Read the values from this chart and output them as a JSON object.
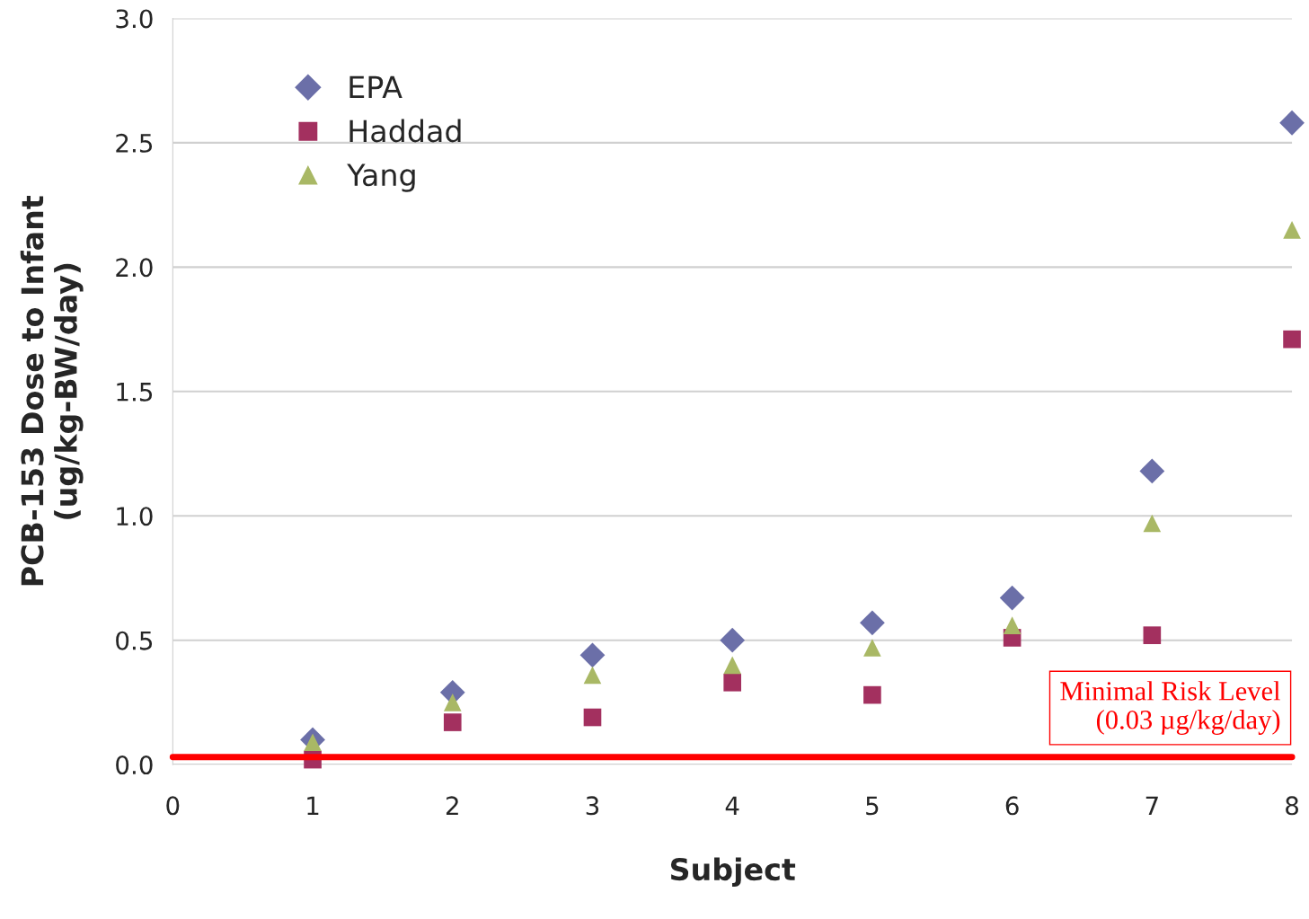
{
  "chart_data": {
    "type": "scatter",
    "xlabel": "Subject",
    "ylabel": "PCB-153 Dose to Infant\n(ug/kg-BW/day)",
    "x": [
      1,
      2,
      3,
      4,
      5,
      6,
      7,
      8
    ],
    "series": [
      {
        "name": "EPA",
        "color": "#6b6fa8",
        "marker": "diamond",
        "values": [
          0.1,
          0.29,
          0.44,
          0.5,
          0.57,
          0.67,
          1.18,
          2.58
        ]
      },
      {
        "name": "Haddad",
        "color": "#a3305f",
        "marker": "square",
        "values": [
          0.02,
          0.17,
          0.19,
          0.33,
          0.28,
          0.51,
          0.52,
          1.71
        ]
      },
      {
        "name": "Yang",
        "color": "#a9b865",
        "marker": "triangle",
        "values": [
          0.09,
          0.25,
          0.36,
          0.4,
          0.47,
          0.56,
          0.97,
          2.15
        ]
      }
    ],
    "xlim": [
      0,
      8
    ],
    "xticks": [
      0,
      1,
      2,
      3,
      4,
      5,
      6,
      7,
      8
    ],
    "ylim": [
      0,
      3
    ],
    "yticks": [
      {
        "value": 0,
        "label": "0.0"
      },
      {
        "value": 0.5,
        "label": "0.5"
      },
      {
        "value": 1,
        "label": "1.0"
      },
      {
        "value": 1.5,
        "label": "1.5"
      },
      {
        "value": 2,
        "label": "2.0"
      },
      {
        "value": 2.5,
        "label": "2.5"
      },
      {
        "value": 3,
        "label": "3.0"
      }
    ],
    "grid": "y",
    "legend": "top left",
    "ref_lines": [
      {
        "axis": "y",
        "value": 0.03,
        "label": "Minimal Risk Level\n(0.03 µg/kg/day)",
        "color": "#ff0000"
      }
    ]
  }
}
